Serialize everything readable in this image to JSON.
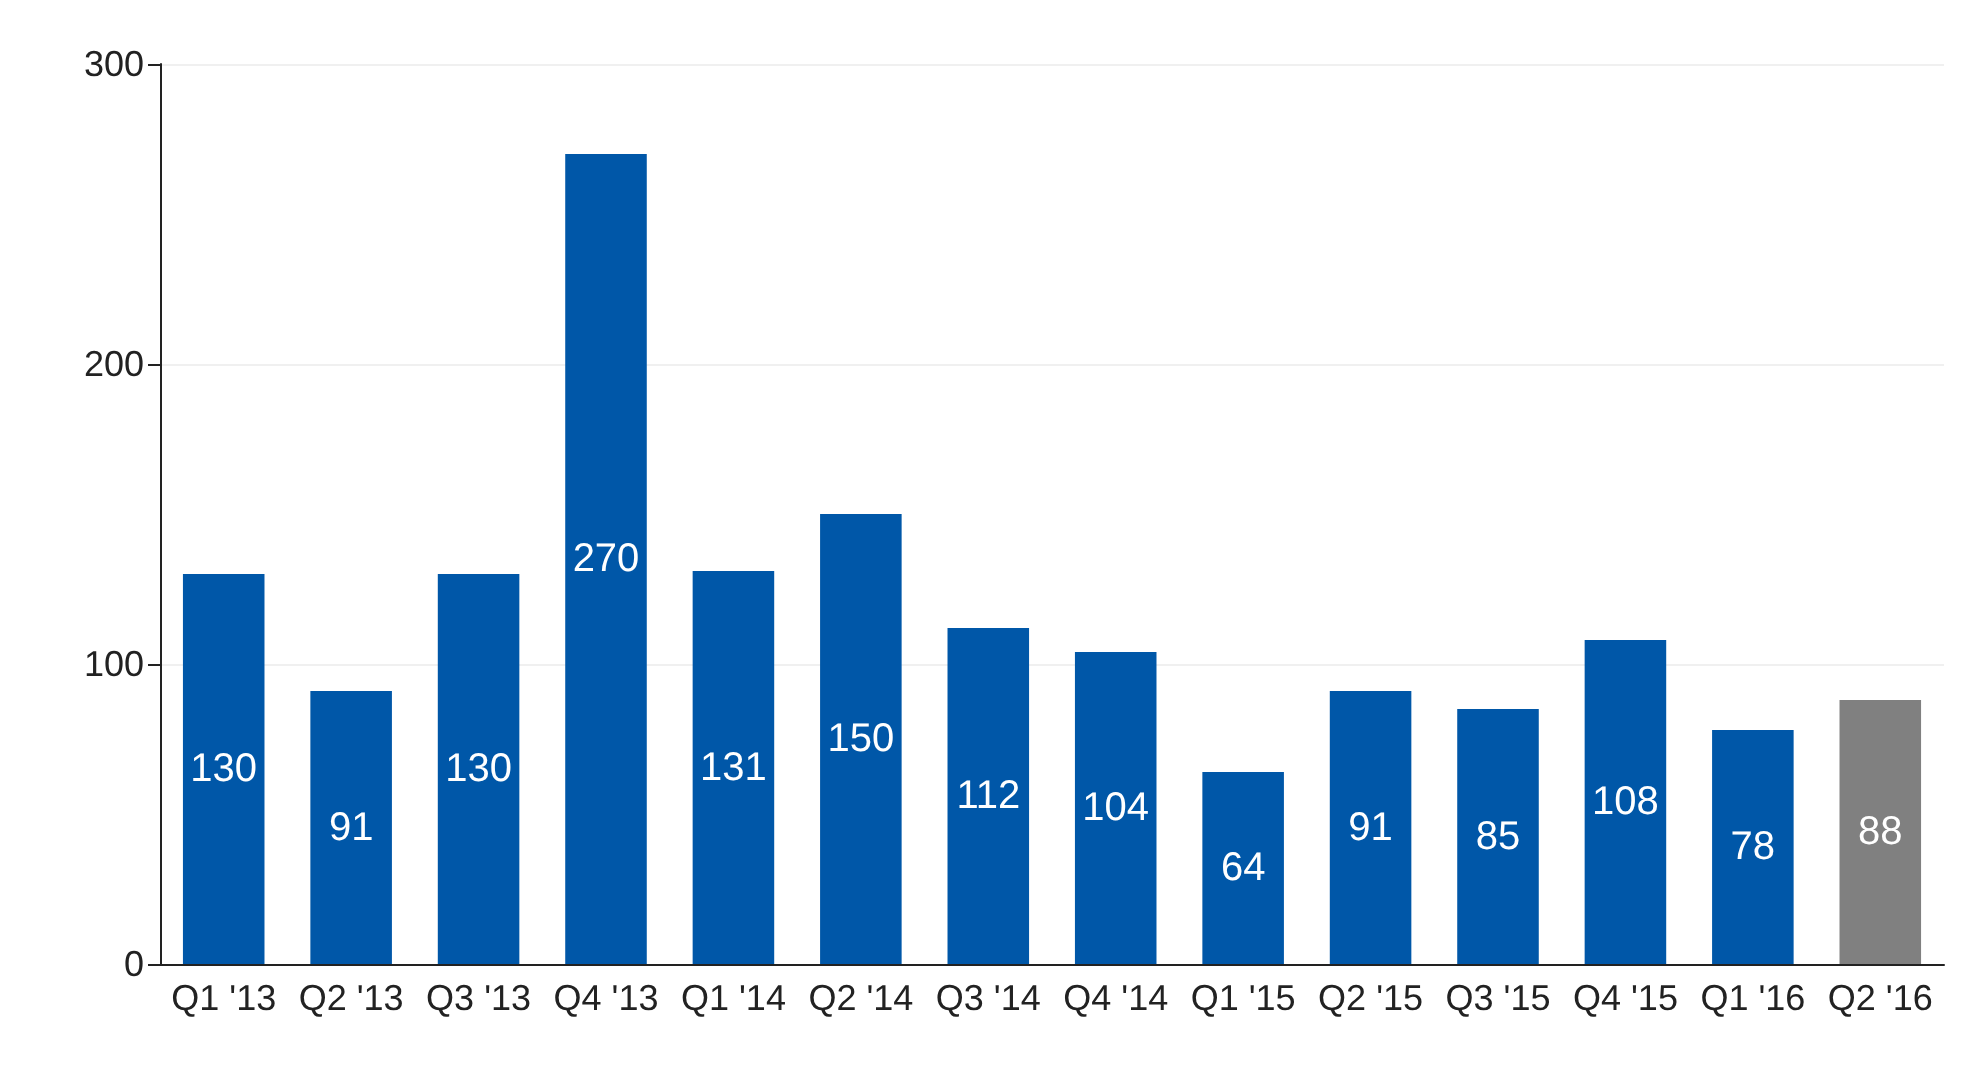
{
  "chart_data": {
    "type": "bar",
    "categories": [
      "Q1 '13",
      "Q2 '13",
      "Q3 '13",
      "Q4 '13",
      "Q1 '14",
      "Q2 '14",
      "Q3 '14",
      "Q4 '14",
      "Q1 '15",
      "Q2 '15",
      "Q3 '15",
      "Q4 '15",
      "Q1 '16",
      "Q2 '16"
    ],
    "values": [
      130,
      91,
      130,
      270,
      131,
      150,
      112,
      104,
      64,
      91,
      85,
      108,
      78,
      88
    ],
    "colors": [
      "#0057a8",
      "#0057a8",
      "#0057a8",
      "#0057a8",
      "#0057a8",
      "#0057a8",
      "#0057a8",
      "#0057a8",
      "#0057a8",
      "#0057a8",
      "#0057a8",
      "#0057a8",
      "#0057a8",
      "#808080"
    ],
    "ylim": [
      0,
      300
    ],
    "yticks": [
      0,
      100,
      200,
      300
    ],
    "grid": "y",
    "data_labels": true
  }
}
